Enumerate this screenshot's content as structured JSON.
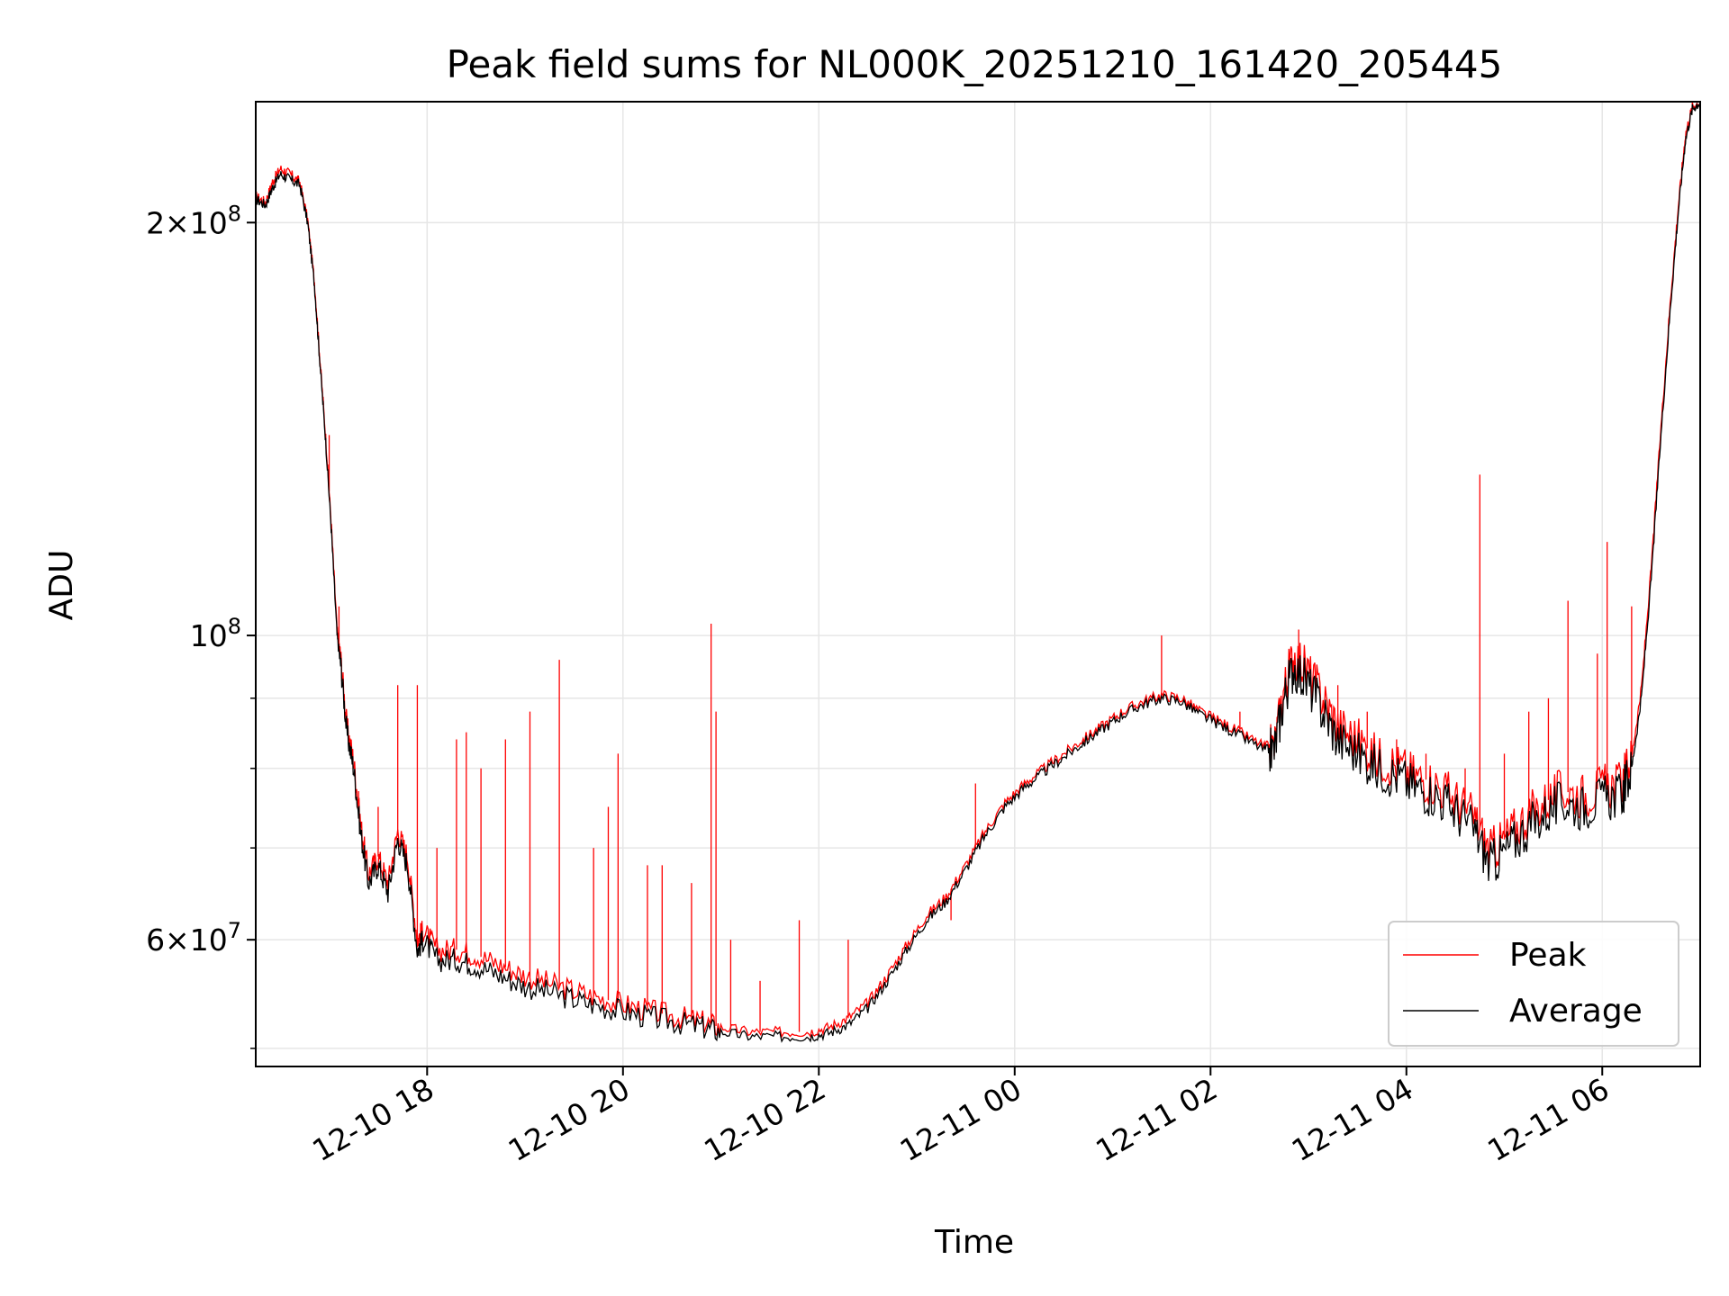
{
  "chart_data": {
    "type": "line",
    "title": "Peak field sums for NL000K_20251210_161420_205445",
    "xlabel": "Time",
    "ylabel": "ADU",
    "yscale": "log",
    "ylim": [
      48500000,
      245000000
    ],
    "xlim_hours": [
      16.25,
      31.0
    ],
    "grid": true,
    "x_ticks": [
      {
        "hour": 18,
        "label": "12-10 18"
      },
      {
        "hour": 20,
        "label": "12-10 20"
      },
      {
        "hour": 22,
        "label": "12-10 22"
      },
      {
        "hour": 24,
        "label": "12-11 00"
      },
      {
        "hour": 26,
        "label": "12-11 02"
      },
      {
        "hour": 28,
        "label": "12-11 04"
      },
      {
        "hour": 30,
        "label": "12-11 06"
      }
    ],
    "y_major_ticks": [
      {
        "value": 200000000,
        "label": "2×10⁸",
        "mantissa": "2",
        "base": "10",
        "exp": "8",
        "with_mantissa": true
      },
      {
        "value": 100000000,
        "label": "10⁸",
        "mantissa": "",
        "base": "10",
        "exp": "8",
        "with_mantissa": false
      },
      {
        "value": 60000000,
        "label": "6×10⁷",
        "mantissa": "6",
        "base": "10",
        "exp": "7",
        "with_mantissa": true
      }
    ],
    "y_minor_ticks": [
      50000000,
      70000000,
      80000000,
      90000000
    ],
    "legend": {
      "position": "lower-right",
      "entries": [
        {
          "name": "Peak",
          "color": "#ff0000"
        },
        {
          "name": "Average",
          "color": "#000000"
        }
      ]
    },
    "series": [
      {
        "name": "Average",
        "color": "#000000",
        "points": [
          [
            16.25,
            208000000
          ],
          [
            16.35,
            206000000
          ],
          [
            16.42,
            212000000
          ],
          [
            16.5,
            217000000
          ],
          [
            16.6,
            215000000
          ],
          [
            16.7,
            213000000
          ],
          [
            16.78,
            200000000
          ],
          [
            16.85,
            180000000
          ],
          [
            16.9,
            160000000
          ],
          [
            16.96,
            140000000
          ],
          [
            17.02,
            120000000
          ],
          [
            17.08,
            100000000
          ],
          [
            17.12,
            95000000
          ],
          [
            17.18,
            85000000
          ],
          [
            17.25,
            80000000
          ],
          [
            17.32,
            72000000
          ],
          [
            17.4,
            66000000
          ],
          [
            17.5,
            68000000
          ],
          [
            17.6,
            65000000
          ],
          [
            17.7,
            71000000
          ],
          [
            17.8,
            68000000
          ],
          [
            17.9,
            59000000
          ],
          [
            17.96,
            60000000
          ],
          [
            18.1,
            58000000
          ],
          [
            18.3,
            58000000
          ],
          [
            18.5,
            57500000
          ],
          [
            18.75,
            56500000
          ],
          [
            19.0,
            55500000
          ],
          [
            19.3,
            54800000
          ],
          [
            19.6,
            54000000
          ],
          [
            19.9,
            53400000
          ],
          [
            20.2,
            52800000
          ],
          [
            20.5,
            52300000
          ],
          [
            20.8,
            51800000
          ],
          [
            21.0,
            51400000
          ],
          [
            21.3,
            51000000
          ],
          [
            21.6,
            51000000
          ],
          [
            21.9,
            51000000
          ],
          [
            22.1,
            51300000
          ],
          [
            22.3,
            52000000
          ],
          [
            22.5,
            53500000
          ],
          [
            22.7,
            56000000
          ],
          [
            22.9,
            59000000
          ],
          [
            23.1,
            62000000
          ],
          [
            23.3,
            64000000
          ],
          [
            23.5,
            67500000
          ],
          [
            23.7,
            71500000
          ],
          [
            23.9,
            75000000
          ],
          [
            24.1,
            77500000
          ],
          [
            24.3,
            79500000
          ],
          [
            24.5,
            81500000
          ],
          [
            24.7,
            83500000
          ],
          [
            24.9,
            85500000
          ],
          [
            25.1,
            87500000
          ],
          [
            25.3,
            89000000
          ],
          [
            25.5,
            90000000
          ],
          [
            25.7,
            89500000
          ],
          [
            25.9,
            87500000
          ],
          [
            26.1,
            86000000
          ],
          [
            26.3,
            84500000
          ],
          [
            26.55,
            82500000
          ],
          [
            26.65,
            82500000
          ],
          [
            26.75,
            90000000
          ],
          [
            26.85,
            95000000
          ],
          [
            27.0,
            92000000
          ],
          [
            27.15,
            88000000
          ],
          [
            27.3,
            84000000
          ],
          [
            27.5,
            82000000
          ],
          [
            27.7,
            80000000
          ],
          [
            27.9,
            79000000
          ],
          [
            28.1,
            77500000
          ],
          [
            28.3,
            76500000
          ],
          [
            28.5,
            74500000
          ],
          [
            28.7,
            72000000
          ],
          [
            28.85,
            68000000
          ],
          [
            29.0,
            69500000
          ],
          [
            29.2,
            72000000
          ],
          [
            29.4,
            74000000
          ],
          [
            29.6,
            75500000
          ],
          [
            29.8,
            75000000
          ],
          [
            30.0,
            76000000
          ],
          [
            30.2,
            76500000
          ],
          [
            30.3,
            80000000
          ],
          [
            30.4,
            90000000
          ],
          [
            30.5,
            110000000
          ],
          [
            30.6,
            140000000
          ],
          [
            30.7,
            175000000
          ],
          [
            30.78,
            205000000
          ],
          [
            30.85,
            230000000
          ],
          [
            30.92,
            242000000
          ],
          [
            31.0,
            245000000
          ]
        ]
      },
      {
        "name": "Peak",
        "color": "#ff0000",
        "points": [
          [
            16.25,
            209000000
          ],
          [
            16.35,
            207000000
          ],
          [
            16.42,
            214000000
          ],
          [
            16.5,
            219000000
          ],
          [
            16.6,
            217000000
          ],
          [
            16.7,
            214000000
          ],
          [
            16.78,
            201000000
          ],
          [
            16.85,
            181000000
          ],
          [
            16.9,
            161000000
          ],
          [
            16.96,
            141000000
          ],
          [
            17.02,
            121000000
          ],
          [
            17.08,
            101000000
          ],
          [
            17.12,
            96000000
          ],
          [
            17.18,
            86000000
          ],
          [
            17.25,
            81000000
          ],
          [
            17.32,
            73000000
          ],
          [
            17.4,
            67000000
          ],
          [
            17.5,
            69000000
          ],
          [
            17.6,
            66000000
          ],
          [
            17.7,
            72000000
          ],
          [
            17.8,
            69000000
          ],
          [
            17.9,
            60000000
          ],
          [
            17.96,
            61000000
          ],
          [
            18.1,
            59000000
          ],
          [
            18.3,
            59000000
          ],
          [
            18.5,
            58500000
          ],
          [
            18.75,
            57500000
          ],
          [
            19.0,
            56500000
          ],
          [
            19.3,
            55600000
          ],
          [
            19.6,
            54800000
          ],
          [
            19.9,
            54100000
          ],
          [
            20.2,
            53400000
          ],
          [
            20.5,
            52800000
          ],
          [
            20.8,
            52300000
          ],
          [
            21.0,
            51800000
          ],
          [
            21.3,
            51400000
          ],
          [
            21.6,
            51400000
          ],
          [
            21.9,
            51400000
          ],
          [
            22.1,
            51800000
          ],
          [
            22.3,
            52600000
          ],
          [
            22.5,
            54000000
          ],
          [
            22.7,
            56500000
          ],
          [
            22.9,
            59500000
          ],
          [
            23.1,
            62500000
          ],
          [
            23.3,
            64500000
          ],
          [
            23.5,
            68000000
          ],
          [
            23.7,
            72000000
          ],
          [
            23.9,
            75500000
          ],
          [
            24.1,
            78000000
          ],
          [
            24.3,
            80000000
          ],
          [
            24.5,
            82000000
          ],
          [
            24.7,
            84000000
          ],
          [
            24.9,
            86000000
          ],
          [
            25.1,
            88000000
          ],
          [
            25.3,
            89500000
          ],
          [
            25.5,
            90500000
          ],
          [
            25.7,
            90000000
          ],
          [
            25.9,
            88000000
          ],
          [
            26.1,
            86500000
          ],
          [
            26.3,
            85000000
          ],
          [
            26.55,
            83000000
          ],
          [
            26.65,
            83000000
          ],
          [
            26.75,
            91500000
          ],
          [
            26.85,
            97000000
          ],
          [
            27.0,
            94000000
          ],
          [
            27.15,
            90000000
          ],
          [
            27.3,
            86000000
          ],
          [
            27.5,
            84000000
          ],
          [
            27.7,
            81500000
          ],
          [
            27.9,
            80500000
          ],
          [
            28.1,
            79000000
          ],
          [
            28.3,
            78000000
          ],
          [
            28.5,
            76000000
          ],
          [
            28.7,
            73500000
          ],
          [
            28.85,
            69500000
          ],
          [
            29.0,
            71000000
          ],
          [
            29.2,
            73500000
          ],
          [
            29.4,
            75500000
          ],
          [
            29.6,
            77000000
          ],
          [
            29.8,
            76500000
          ],
          [
            30.0,
            77500000
          ],
          [
            30.2,
            78000000
          ],
          [
            30.3,
            81500000
          ],
          [
            30.4,
            91500000
          ],
          [
            30.5,
            112000000
          ],
          [
            30.6,
            142000000
          ],
          [
            30.7,
            177000000
          ],
          [
            30.78,
            207000000
          ],
          [
            30.85,
            232000000
          ],
          [
            30.92,
            243000000
          ],
          [
            31.0,
            245000000
          ]
        ],
        "spikes": [
          [
            17.0,
            140000000
          ],
          [
            17.1,
            105000000
          ],
          [
            17.3,
            77000000
          ],
          [
            17.5,
            75000000
          ],
          [
            17.7,
            92000000
          ],
          [
            17.9,
            92000000
          ],
          [
            18.1,
            70000000
          ],
          [
            18.3,
            84000000
          ],
          [
            18.4,
            85000000
          ],
          [
            18.55,
            80000000
          ],
          [
            18.8,
            84000000
          ],
          [
            19.05,
            88000000
          ],
          [
            19.35,
            96000000
          ],
          [
            19.7,
            70000000
          ],
          [
            19.85,
            75000000
          ],
          [
            19.95,
            82000000
          ],
          [
            20.25,
            68000000
          ],
          [
            20.4,
            68000000
          ],
          [
            20.7,
            66000000
          ],
          [
            20.9,
            102000000
          ],
          [
            20.95,
            88000000
          ],
          [
            21.1,
            60000000
          ],
          [
            21.4,
            56000000
          ],
          [
            21.8,
            62000000
          ],
          [
            22.3,
            60000000
          ],
          [
            23.35,
            62000000
          ],
          [
            23.6,
            78000000
          ],
          [
            25.5,
            100000000
          ],
          [
            26.3,
            88000000
          ],
          [
            26.9,
            101000000
          ],
          [
            27.3,
            92000000
          ],
          [
            27.6,
            88000000
          ],
          [
            27.9,
            84000000
          ],
          [
            28.2,
            82000000
          ],
          [
            28.6,
            80000000
          ],
          [
            28.75,
            131000000
          ],
          [
            29.0,
            82000000
          ],
          [
            29.25,
            88000000
          ],
          [
            29.45,
            90000000
          ],
          [
            29.65,
            106000000
          ],
          [
            29.95,
            97000000
          ],
          [
            30.05,
            117000000
          ],
          [
            30.3,
            105000000
          ]
        ]
      }
    ]
  }
}
